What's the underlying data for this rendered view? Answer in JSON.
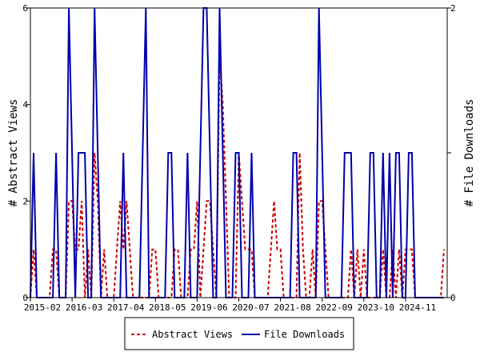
{
  "chart_data": {
    "type": "line",
    "xlabel": "",
    "ylabel_left": "# Abstract Views",
    "ylabel_right": "# File Downloads",
    "ylim_left": [
      0,
      6
    ],
    "ylim_right": [
      0,
      2
    ],
    "y_ticks_left": [
      "0",
      "2",
      "4",
      "6"
    ],
    "y_ticks_right": [
      "0",
      "1",
      "2"
    ],
    "x_ticks": [
      "2015-02",
      "2016-03",
      "2017-04",
      "2018-05",
      "2019-06",
      "2020-07",
      "2021-08",
      "2022-09",
      "2023-10",
      "2024-11"
    ],
    "x_ticks_months": [
      0,
      13,
      26,
      39,
      52,
      65,
      78,
      91,
      104,
      117
    ],
    "x_range_months": [
      0,
      130
    ],
    "legend_position": "bottom",
    "grid": false,
    "series": [
      {
        "name": "Abstract Views",
        "axis": "left",
        "color": "#cc0000",
        "style": "dashed",
        "values": [
          0,
          1,
          0,
          0,
          0,
          0,
          0,
          1,
          1,
          0,
          0,
          0,
          2,
          2,
          1,
          1,
          2,
          0,
          1,
          0,
          3,
          2,
          0,
          1,
          0,
          0,
          0,
          1,
          2,
          1,
          2,
          1,
          0,
          0,
          0,
          0,
          0,
          0,
          1,
          1,
          0,
          0,
          0,
          0,
          0,
          1,
          1,
          0,
          0,
          0,
          1,
          1,
          2,
          0,
          1,
          2,
          2,
          1,
          0,
          5,
          4,
          2,
          0,
          0,
          0,
          3,
          2,
          1,
          1,
          1,
          0,
          0,
          0,
          0,
          0,
          1,
          2,
          1,
          1,
          0,
          0,
          0,
          0,
          0,
          3,
          1,
          0,
          0,
          1,
          0,
          2,
          2,
          1,
          0,
          0,
          0,
          0,
          0,
          0,
          0,
          1,
          0,
          1,
          0,
          1,
          0,
          0,
          0,
          0,
          0,
          1,
          0,
          0,
          1,
          0,
          1,
          0,
          1,
          1,
          1,
          0,
          0,
          0,
          0,
          0,
          0,
          0,
          0,
          0,
          1
        ]
      },
      {
        "name": "File Downloads",
        "axis": "right",
        "color": "#0000aa",
        "style": "solid",
        "values": [
          0,
          1,
          0,
          0,
          0,
          0,
          0,
          0,
          1,
          0,
          0,
          0,
          2,
          1,
          0,
          1,
          1,
          1,
          0,
          0,
          2,
          1,
          0,
          0,
          0,
          0,
          0,
          0,
          0,
          1,
          0,
          0,
          0,
          0,
          0,
          1,
          2,
          0,
          0,
          0,
          0,
          0,
          0,
          1,
          1,
          0,
          0,
          0,
          0,
          1,
          0,
          0,
          0,
          1,
          2,
          2,
          1,
          0,
          0,
          2,
          1,
          0,
          0,
          0,
          1,
          1,
          0,
          0,
          0,
          1,
          0,
          0,
          0,
          0,
          0,
          0,
          0,
          0,
          0,
          0,
          0,
          0,
          1,
          1,
          0,
          0,
          0,
          0,
          0,
          0,
          2,
          1,
          0,
          0,
          0,
          0,
          0,
          0,
          1,
          1,
          1,
          0,
          0,
          0,
          0,
          0,
          1,
          1,
          0,
          0,
          1,
          0,
          1,
          0,
          1,
          1,
          0,
          0,
          1,
          1,
          0,
          0,
          0,
          0,
          0,
          0,
          0,
          0,
          0,
          0
        ]
      }
    ]
  }
}
